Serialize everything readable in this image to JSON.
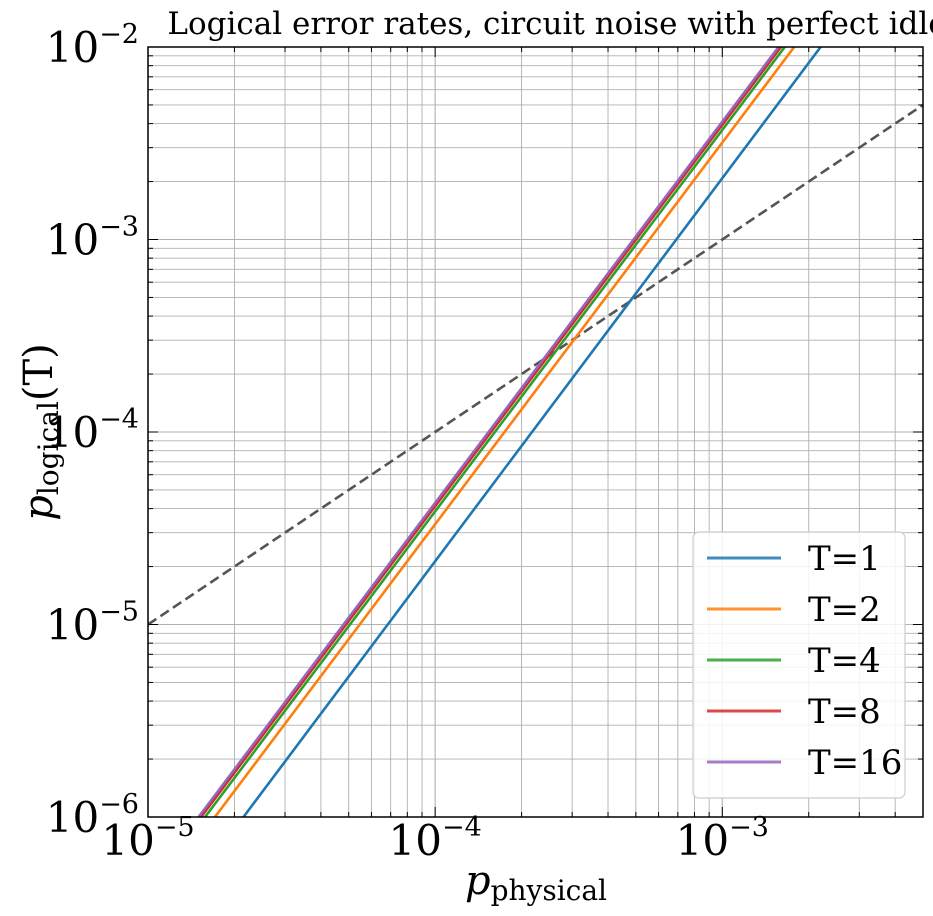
{
  "chart_data": {
    "type": "line",
    "title": "Logical error rates, circuit noise with perfect idle",
    "xlabel": {
      "symbol": "p",
      "subscript": "physical"
    },
    "ylabel": {
      "symbol": "p",
      "subscript": "logical",
      "argument": "(T)"
    },
    "xscale": "log",
    "yscale": "log",
    "xlim": [
      1e-05,
      0.005
    ],
    "ylim": [
      1e-06,
      0.01
    ],
    "grid": "both major and minor",
    "legend_position": "lower right",
    "x_ticks": [
      {
        "value": 1e-05,
        "base": "10",
        "exponent": "−5"
      },
      {
        "value": 0.0001,
        "base": "10",
        "exponent": "−4"
      },
      {
        "value": 0.001,
        "base": "10",
        "exponent": "−3"
      }
    ],
    "y_ticks": [
      {
        "value": 1e-06,
        "base": "10",
        "exponent": "−6"
      },
      {
        "value": 1e-05,
        "base": "10",
        "exponent": "−5"
      },
      {
        "value": 0.0001,
        "base": "10",
        "exponent": "−4"
      },
      {
        "value": 0.001,
        "base": "10",
        "exponent": "−3"
      },
      {
        "value": 0.01,
        "base": "10",
        "exponent": "−2"
      }
    ],
    "series": [
      {
        "name": "T=1",
        "color": "#1f77b4",
        "style": "solid",
        "x": [
          2.15e-05,
          0.0022
        ],
        "y": [
          1e-06,
          0.01
        ]
      },
      {
        "name": "T=2",
        "color": "#ff7f0e",
        "style": "solid",
        "x": [
          1.71e-05,
          0.00178
        ],
        "y": [
          1e-06,
          0.01
        ]
      },
      {
        "name": "T=4",
        "color": "#2ca02c",
        "style": "solid",
        "x": [
          1.58e-05,
          0.00165
        ],
        "y": [
          1e-06,
          0.01
        ]
      },
      {
        "name": "T=8",
        "color": "#d62728",
        "style": "solid",
        "x": [
          1.53e-05,
          0.0016
        ],
        "y": [
          1e-06,
          0.01
        ]
      },
      {
        "name": "T=16",
        "color": "#9467bd",
        "style": "solid",
        "x": [
          1.5e-05,
          0.00157
        ],
        "y": [
          1e-06,
          0.01
        ]
      }
    ],
    "reference_line": {
      "name": "p_logical = p_physical",
      "color": "#555555",
      "style": "dashed",
      "x": [
        1e-05,
        0.005
      ],
      "y": [
        1e-05,
        0.005
      ]
    }
  }
}
